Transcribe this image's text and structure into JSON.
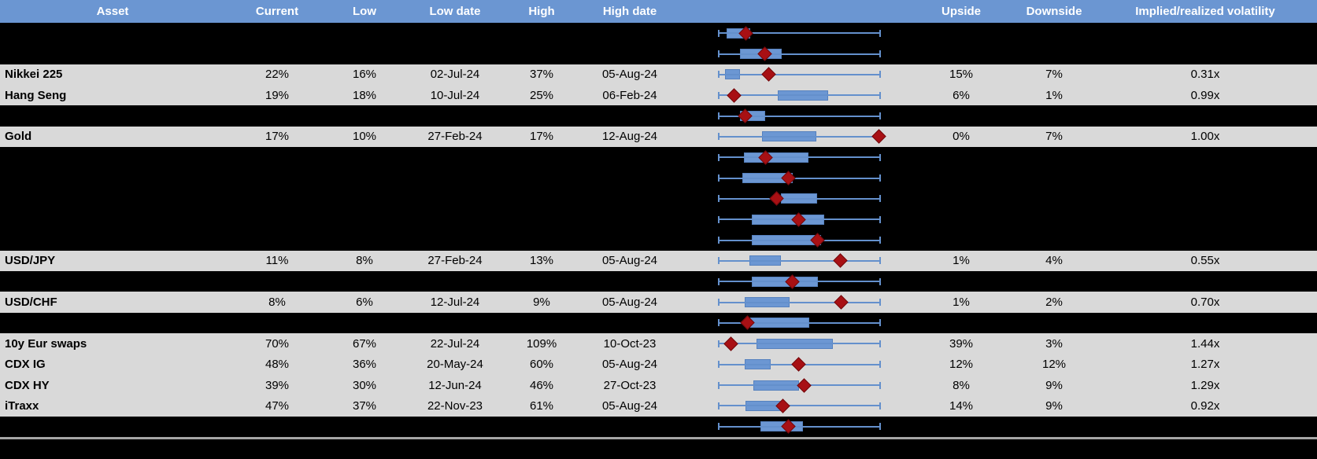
{
  "colors": {
    "header_bg": "#6B96D2",
    "header_text": "#FFFFFF",
    "row_bg": "#D9D9D9",
    "hidden_bg": "#000000",
    "cell_text": "#000000",
    "box_fill": "#6C97D3",
    "box_border": "#5681BE",
    "whisker": "#6490CC",
    "marker": "#A81014",
    "marker_border": "#73090C",
    "separator": "#A6A6A6"
  },
  "chart_data": {
    "type": "table",
    "description": "Implied volatility table: each row shows current/low/high 1y implied vol with dates, plus a min-max whisker chart (blue box = middle range, red diamond = current level). Whisker spans the full low-to-high range; box_start/box_end/marker are normalized 0-1 positions along that range. Rows with hidden=true are blacked-out rows where only the range chart is visible.",
    "columns": [
      "Asset",
      "Current",
      "Low",
      "Low date",
      "High",
      "High date",
      "Upside",
      "Downside",
      "Implied/realized volatility"
    ],
    "legend": {
      "whisker_meaning": "low-to-high range",
      "box_meaning": "middle of range (blue box)",
      "marker_meaning": "current level (red diamond)"
    },
    "rows": [
      {
        "hidden": true,
        "asset": "",
        "current": "",
        "low": "",
        "low_date": "",
        "high": "",
        "high_date": "",
        "upside": "",
        "downside": "",
        "implied_realized": "",
        "box": [
          0.05,
          0.197
        ],
        "marker": 0.168
      },
      {
        "hidden": true,
        "asset": "",
        "current": "",
        "low": "",
        "low_date": "",
        "high": "",
        "high_date": "",
        "upside": "",
        "downside": "",
        "implied_realized": "",
        "box": [
          0.133,
          0.392
        ],
        "marker": 0.285
      },
      {
        "hidden": false,
        "asset": "Nikkei 225",
        "current": "22%",
        "low": "16%",
        "low_date": "02-Jul-24",
        "high": "37%",
        "high_date": "05-Aug-24",
        "upside": "15%",
        "downside": "7%",
        "implied_realized": "0.31x",
        "box": [
          0.04,
          0.132
        ],
        "marker": 0.31
      },
      {
        "hidden": false,
        "asset": "Hang Seng",
        "current": "19%",
        "low": "18%",
        "low_date": "10-Jul-24",
        "high": "25%",
        "high_date": "06-Feb-24",
        "upside": "6%",
        "downside": "1%",
        "implied_realized": "0.99x",
        "box": [
          0.366,
          0.678
        ],
        "marker": 0.095
      },
      {
        "hidden": true,
        "asset": "",
        "current": "",
        "low": "",
        "low_date": "",
        "high": "",
        "high_date": "",
        "upside": "",
        "downside": "",
        "implied_realized": "",
        "box": [
          0.132,
          0.286
        ],
        "marker": 0.164
      },
      {
        "hidden": false,
        "asset": "Gold",
        "current": "17%",
        "low": "10%",
        "low_date": "27-Feb-24",
        "high": "17%",
        "high_date": "12-Aug-24",
        "upside": "0%",
        "downside": "7%",
        "implied_realized": "1.00x",
        "box": [
          0.268,
          0.605
        ],
        "marker": 0.993
      },
      {
        "hidden": true,
        "asset": "",
        "current": "",
        "low": "",
        "low_date": "",
        "high": "",
        "high_date": "",
        "upside": "",
        "downside": "",
        "implied_realized": "",
        "box": [
          0.156,
          0.555
        ],
        "marker": 0.291
      },
      {
        "hidden": true,
        "asset": "",
        "current": "",
        "low": "",
        "low_date": "",
        "high": "",
        "high_date": "",
        "upside": "",
        "downside": "",
        "implied_realized": "",
        "box": [
          0.146,
          0.457
        ],
        "marker": 0.433
      },
      {
        "hidden": true,
        "asset": "",
        "current": "",
        "low": "",
        "low_date": "",
        "high": "",
        "high_date": "",
        "upside": "",
        "downside": "",
        "implied_realized": "",
        "box": [
          0.384,
          0.611
        ],
        "marker": 0.36
      },
      {
        "hidden": true,
        "asset": "",
        "current": "",
        "low": "",
        "low_date": "",
        "high": "",
        "high_date": "",
        "upside": "",
        "downside": "",
        "implied_realized": "",
        "box": [
          0.205,
          0.652
        ],
        "marker": 0.494
      },
      {
        "hidden": true,
        "asset": "",
        "current": "",
        "low": "",
        "low_date": "",
        "high": "",
        "high_date": "",
        "upside": "",
        "downside": "",
        "implied_realized": "",
        "box": [
          0.205,
          0.634
        ],
        "marker": 0.61
      },
      {
        "hidden": false,
        "asset": "USD/JPY",
        "current": "11%",
        "low": "8%",
        "low_date": "27-Feb-24",
        "high": "13%",
        "high_date": "05-Aug-24",
        "upside": "1%",
        "downside": "4%",
        "implied_realized": "0.55x",
        "box": [
          0.189,
          0.384
        ],
        "marker": 0.755
      },
      {
        "hidden": true,
        "asset": "",
        "current": "",
        "low": "",
        "low_date": "",
        "high": "",
        "high_date": "",
        "upside": "",
        "downside": "",
        "implied_realized": "",
        "box": [
          0.205,
          0.615
        ],
        "marker": 0.457
      },
      {
        "hidden": false,
        "asset": "USD/CHF",
        "current": "8%",
        "low": "6%",
        "low_date": "12-Jul-24",
        "high": "9%",
        "high_date": "05-Aug-24",
        "upside": "1%",
        "downside": "2%",
        "implied_realized": "0.70x",
        "box": [
          0.161,
          0.437
        ],
        "marker": 0.757
      },
      {
        "hidden": true,
        "asset": "",
        "current": "",
        "low": "",
        "low_date": "",
        "high": "",
        "high_date": "",
        "upside": "",
        "downside": "",
        "implied_realized": "",
        "box": [
          0.195,
          0.561
        ],
        "marker": 0.176
      },
      {
        "hidden": false,
        "asset": "10y Eur swaps",
        "current": "70%",
        "low": "67%",
        "low_date": "22-Jul-24",
        "high": "109%",
        "high_date": "10-Oct-23",
        "upside": "39%",
        "downside": "3%",
        "implied_realized": "1.44x",
        "box": [
          0.233,
          0.708
        ],
        "marker": 0.078
      },
      {
        "hidden": false,
        "asset": "CDX IG",
        "current": "48%",
        "low": "36%",
        "low_date": "20-May-24",
        "high": "60%",
        "high_date": "05-Aug-24",
        "upside": "12%",
        "downside": "12%",
        "implied_realized": "1.27x",
        "box": [
          0.161,
          0.323
        ],
        "marker": 0.494
      },
      {
        "hidden": false,
        "asset": "CDX HY",
        "current": "39%",
        "low": "30%",
        "low_date": "12-Jun-24",
        "high": "46%",
        "high_date": "27-Oct-23",
        "upside": "8%",
        "downside": "9%",
        "implied_realized": "1.29x",
        "box": [
          0.215,
          0.498
        ],
        "marker": 0.53
      },
      {
        "hidden": false,
        "asset": "iTraxx",
        "current": "47%",
        "low": "37%",
        "low_date": "22-Nov-23",
        "high": "61%",
        "high_date": "05-Aug-24",
        "upside": "14%",
        "downside": "9%",
        "implied_realized": "0.92x",
        "box": [
          0.166,
          0.384
        ],
        "marker": 0.397
      },
      {
        "hidden": true,
        "asset": "",
        "current": "",
        "low": "",
        "low_date": "",
        "high": "",
        "high_date": "",
        "upside": "",
        "downside": "",
        "implied_realized": "",
        "box": [
          0.259,
          0.522
        ],
        "marker": 0.434
      }
    ]
  }
}
